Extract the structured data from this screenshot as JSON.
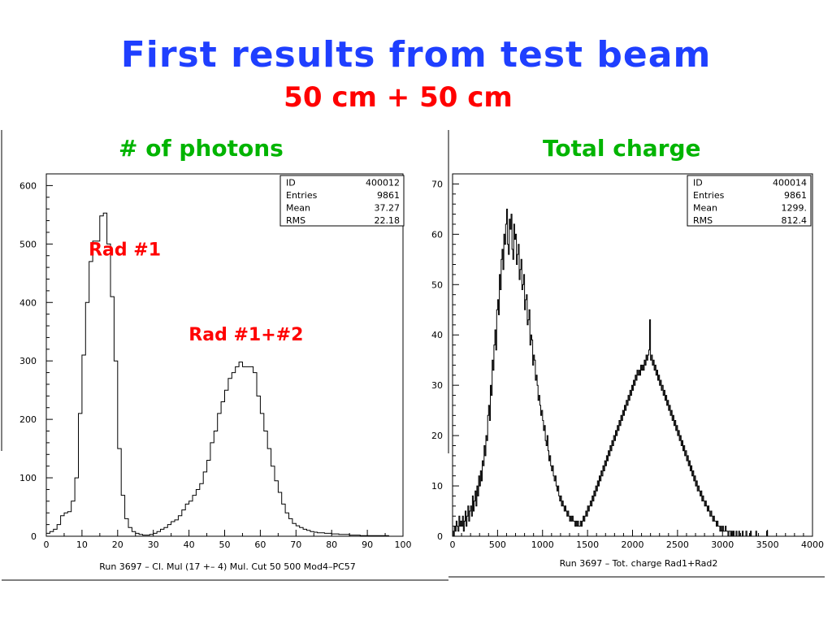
{
  "slide": {
    "title": "First results from test beam",
    "subtitle": "50 cm + 50 cm",
    "left_label": "# of photons",
    "right_label": "Total charge",
    "colors": {
      "title": "#1f3fff",
      "subtitle": "#ff0000",
      "panel_label": "#00b400",
      "annotation": "#ff0000"
    }
  },
  "chart_data": [
    {
      "type": "histogram",
      "title": "",
      "xlabel": "Run 3697 – Cl. Mul (17 +– 4) Mul. Cut 50 500 Mod4–PC57",
      "ylabel": "",
      "xlim": [
        0,
        100
      ],
      "ylim": [
        0,
        620
      ],
      "xticks": [
        0,
        10,
        20,
        30,
        40,
        50,
        60,
        70,
        80,
        90,
        100
      ],
      "yticks": [
        0,
        100,
        200,
        300,
        400,
        500,
        600
      ],
      "stats": [
        {
          "label": "ID",
          "value": "400012"
        },
        {
          "label": "Entries",
          "value": "9861"
        },
        {
          "label": "Mean",
          "value": "37.27"
        },
        {
          "label": "RMS",
          "value": "22.18"
        }
      ],
      "annotations": [
        {
          "text": "Rad #1",
          "x": 22,
          "y": 480
        },
        {
          "text": "Rad #1+#2",
          "x": 56,
          "y": 335
        }
      ],
      "bin_width": 1,
      "x": [
        0,
        1,
        2,
        3,
        4,
        5,
        6,
        7,
        8,
        9,
        10,
        11,
        12,
        13,
        14,
        15,
        16,
        17,
        18,
        19,
        20,
        21,
        22,
        23,
        24,
        25,
        26,
        27,
        28,
        29,
        30,
        31,
        32,
        33,
        34,
        35,
        36,
        37,
        38,
        39,
        40,
        41,
        42,
        43,
        44,
        45,
        46,
        47,
        48,
        49,
        50,
        51,
        52,
        53,
        54,
        55,
        56,
        57,
        58,
        59,
        60,
        61,
        62,
        63,
        64,
        65,
        66,
        67,
        68,
        69,
        70,
        71,
        72,
        73,
        74,
        75,
        76,
        77,
        78,
        79,
        80,
        81,
        82,
        83,
        84,
        85,
        86,
        87,
        88,
        89,
        90,
        91,
        92,
        93,
        94,
        95,
        96,
        97,
        98,
        99
      ],
      "values": [
        5,
        8,
        12,
        20,
        35,
        40,
        42,
        60,
        100,
        210,
        310,
        400,
        470,
        505,
        505,
        548,
        553,
        500,
        410,
        300,
        150,
        70,
        30,
        15,
        8,
        5,
        3,
        2,
        2,
        3,
        5,
        8,
        12,
        15,
        20,
        25,
        28,
        35,
        45,
        55,
        60,
        70,
        80,
        90,
        110,
        130,
        160,
        180,
        210,
        230,
        250,
        270,
        280,
        290,
        298,
        290,
        290,
        290,
        280,
        240,
        210,
        180,
        150,
        120,
        95,
        75,
        55,
        40,
        30,
        22,
        18,
        15,
        12,
        10,
        8,
        7,
        6,
        6,
        5,
        5,
        4,
        4,
        3,
        3,
        3,
        2,
        2,
        2,
        1,
        1,
        1,
        1,
        1,
        1,
        1,
        1,
        0,
        0,
        0,
        0
      ]
    },
    {
      "type": "histogram",
      "title": "",
      "xlabel": "Run 3697 – Tot. charge Rad1+Rad2",
      "ylabel": "",
      "xlim": [
        0,
        4000
      ],
      "ylim": [
        0,
        72
      ],
      "xticks": [
        0,
        500,
        1000,
        1500,
        2000,
        2500,
        3000,
        3500,
        4000
      ],
      "yticks": [
        0,
        10,
        20,
        30,
        40,
        50,
        60,
        70
      ],
      "stats": [
        {
          "label": "ID",
          "value": "400014"
        },
        {
          "label": "Entries",
          "value": "9861"
        },
        {
          "label": "Mean",
          "value": "1299."
        },
        {
          "label": "RMS",
          "value": "812.4"
        }
      ],
      "bin_width": 10,
      "x_start": 0,
      "values": [
        1,
        0,
        2,
        1,
        3,
        2,
        1,
        4,
        2,
        3,
        2,
        4,
        1,
        3,
        5,
        2,
        4,
        6,
        3,
        5,
        6,
        4,
        8,
        5,
        7,
        9,
        6,
        10,
        8,
        12,
        10,
        13,
        11,
        15,
        14,
        18,
        16,
        20,
        19,
        24,
        26,
        23,
        30,
        28,
        35,
        33,
        38,
        41,
        37,
        45,
        47,
        44,
        52,
        49,
        55,
        57,
        53,
        60,
        58,
        62,
        65,
        58,
        56,
        63,
        61,
        64,
        57,
        55,
        62,
        59,
        60,
        54,
        56,
        58,
        51,
        53,
        55,
        49,
        50,
        52,
        45,
        47,
        48,
        42,
        43,
        45,
        38,
        40,
        39,
        34,
        36,
        35,
        31,
        32,
        30,
        27,
        28,
        26,
        24,
        25,
        23,
        21,
        22,
        19,
        18,
        20,
        17,
        15,
        16,
        14,
        13,
        14,
        12,
        11,
        12,
        10,
        9,
        10,
        8,
        7,
        8,
        6,
        7,
        6,
        5,
        6,
        5,
        4,
        5,
        4,
        3,
        4,
        3,
        4,
        3,
        3,
        2,
        3,
        2,
        3,
        2,
        2,
        3,
        2,
        3,
        4,
        3,
        4,
        5,
        4,
        6,
        5,
        6,
        7,
        6,
        8,
        7,
        9,
        8,
        10,
        9,
        11,
        10,
        12,
        11,
        13,
        12,
        14,
        13,
        15,
        14,
        16,
        15,
        17,
        16,
        18,
        17,
        19,
        18,
        20,
        19,
        21,
        20,
        22,
        21,
        23,
        22,
        24,
        23,
        25,
        24,
        26,
        25,
        27,
        26,
        28,
        27,
        29,
        28,
        30,
        29,
        31,
        30,
        32,
        31,
        33,
        32,
        33,
        32,
        34,
        33,
        34,
        33,
        35,
        34,
        36,
        35,
        36,
        37,
        43,
        35,
        36,
        34,
        35,
        33,
        34,
        32,
        33,
        31,
        32,
        30,
        31,
        29,
        30,
        28,
        29,
        27,
        28,
        26,
        27,
        25,
        26,
        24,
        25,
        23,
        24,
        22,
        23,
        21,
        22,
        20,
        21,
        19,
        20,
        18,
        19,
        17,
        18,
        16,
        17,
        15,
        16,
        14,
        15,
        13,
        14,
        12,
        13,
        11,
        12,
        10,
        11,
        9,
        10,
        9,
        8,
        9,
        7,
        8,
        7,
        6,
        7,
        6,
        5,
        6,
        5,
        4,
        5,
        4,
        3,
        4,
        3,
        3,
        2,
        3,
        2,
        2,
        1,
        2,
        1,
        2,
        1,
        1,
        2,
        1,
        1,
        0,
        1,
        1,
        0,
        1,
        0,
        1,
        0,
        0,
        1,
        0,
        0,
        1,
        0,
        0,
        0,
        1,
        0,
        0,
        0,
        1,
        0,
        0,
        0,
        0,
        1,
        0,
        0,
        0,
        0,
        0,
        1,
        0,
        0,
        0,
        0,
        0,
        0,
        0,
        0,
        0,
        0,
        0,
        1,
        0,
        0,
        0,
        0,
        0,
        0,
        0,
        0,
        0,
        0,
        0,
        0,
        0,
        0,
        0,
        0,
        0,
        0,
        0,
        0,
        0,
        0,
        0,
        0,
        0,
        0,
        0,
        0,
        0,
        0,
        0,
        0,
        0,
        0,
        0,
        0,
        0,
        0,
        0,
        0,
        0,
        0,
        0,
        0,
        0,
        0,
        0,
        0,
        0,
        0,
        0,
        0,
        0,
        0,
        0,
        0,
        0,
        0,
        0,
        0,
        0,
        0
      ]
    }
  ]
}
